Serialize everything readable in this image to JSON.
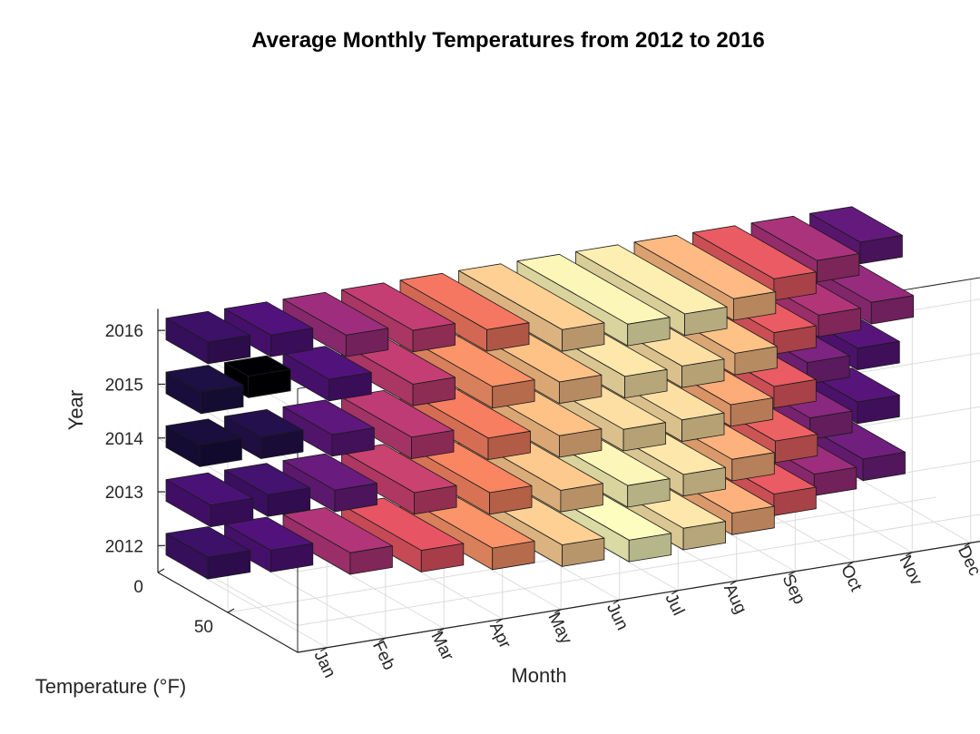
{
  "chart_data": {
    "type": "bar3",
    "title": "Average Monthly Temperatures from 2012 to 2016",
    "xlabel": "Month",
    "ylabel": "Year",
    "zlabel": "Temperature (°F)",
    "categories": [
      "Jan",
      "Feb",
      "Mar",
      "Apr",
      "May",
      "Jun",
      "Jul",
      "Aug",
      "Sep",
      "Oct",
      "Nov",
      "Dec"
    ],
    "years": [
      "2012",
      "2013",
      "2014",
      "2015",
      "2016"
    ],
    "temperature_ticks": [
      "0",
      "50"
    ],
    "zlim": [
      0,
      100
    ],
    "grid": true,
    "colormap": "magma",
    "series": [
      {
        "name": "2012",
        "values": [
          30,
          33,
          48,
          57,
          66,
          74,
          80,
          77,
          70,
          58,
          45,
          38
        ]
      },
      {
        "name": "2013",
        "values": [
          32,
          31,
          37,
          52,
          64,
          73,
          79,
          77,
          70,
          59,
          42,
          34
        ]
      },
      {
        "name": "2014",
        "values": [
          24,
          26,
          35,
          50,
          63,
          72,
          76,
          76,
          69,
          58,
          40,
          34
        ]
      },
      {
        "name": "2015",
        "values": [
          25,
          17,
          33,
          51,
          66,
          72,
          77,
          76,
          72,
          58,
          48,
          44
        ]
      },
      {
        "name": "2016",
        "values": [
          30,
          33,
          45,
          51,
          62,
          74,
          79,
          78,
          71,
          58,
          47,
          36
        ]
      }
    ]
  }
}
